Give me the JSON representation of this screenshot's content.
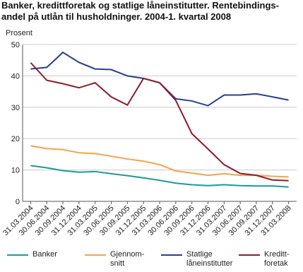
{
  "chart_data": {
    "type": "line",
    "title_lines": [
      "Banker, kredittforetak og statlige låneinstitutter. Rentebindings-",
      "andel på utlån til husholdninger. 2004-1. kvartal 2008"
    ],
    "y_label": "Prosent",
    "categories": [
      "31.03.2004",
      "30.06.2004",
      "30.09.2004",
      "31.12.2004",
      "31.03.2005",
      "30.06.2005",
      "30.09.2005",
      "31.12.2005",
      "31.03.2006",
      "30.06.2006",
      "30.09.2006",
      "31.12.2006",
      "31.03.2007",
      "30.06.2007",
      "30.09.2007",
      "31.12.2007",
      "31.03.2008"
    ],
    "series": [
      {
        "name": "Banker",
        "color": "#1b9a9b",
        "values": [
          11.4,
          10.7,
          9.8,
          9.3,
          9.5,
          8.8,
          8.2,
          7.5,
          6.7,
          5.8,
          5.3,
          5.0,
          5.3,
          5.0,
          4.9,
          4.9,
          4.6
        ]
      },
      {
        "name": "Gjennom-\nsnitt",
        "color": "#f7a24b",
        "values": [
          17.7,
          16.8,
          16.5,
          15.5,
          15.2,
          14.4,
          13.5,
          12.8,
          11.7,
          9.7,
          9.0,
          8.3,
          8.8,
          8.3,
          8.3,
          8.0,
          7.8
        ]
      },
      {
        "name": "Statlige\nlåneinstitutter",
        "color": "#283f8f",
        "values": [
          42.2,
          42.7,
          47.5,
          44.3,
          42.2,
          42.0,
          40.0,
          39.2,
          37.8,
          32.7,
          32.0,
          30.5,
          33.9,
          33.9,
          34.3,
          33.3,
          32.3
        ]
      },
      {
        "name": "Kreditt-\nforetak",
        "color": "#8e1b2c",
        "values": [
          44.2,
          38.6,
          37.5,
          36.2,
          37.8,
          33.3,
          30.7,
          39.2,
          37.8,
          32.2,
          21.6,
          16.7,
          11.7,
          8.9,
          8.3,
          6.8,
          6.6
        ]
      }
    ],
    "ylim": [
      0,
      50
    ],
    "yticks": [
      0,
      10,
      20,
      30,
      40,
      50
    ],
    "grid": true
  }
}
